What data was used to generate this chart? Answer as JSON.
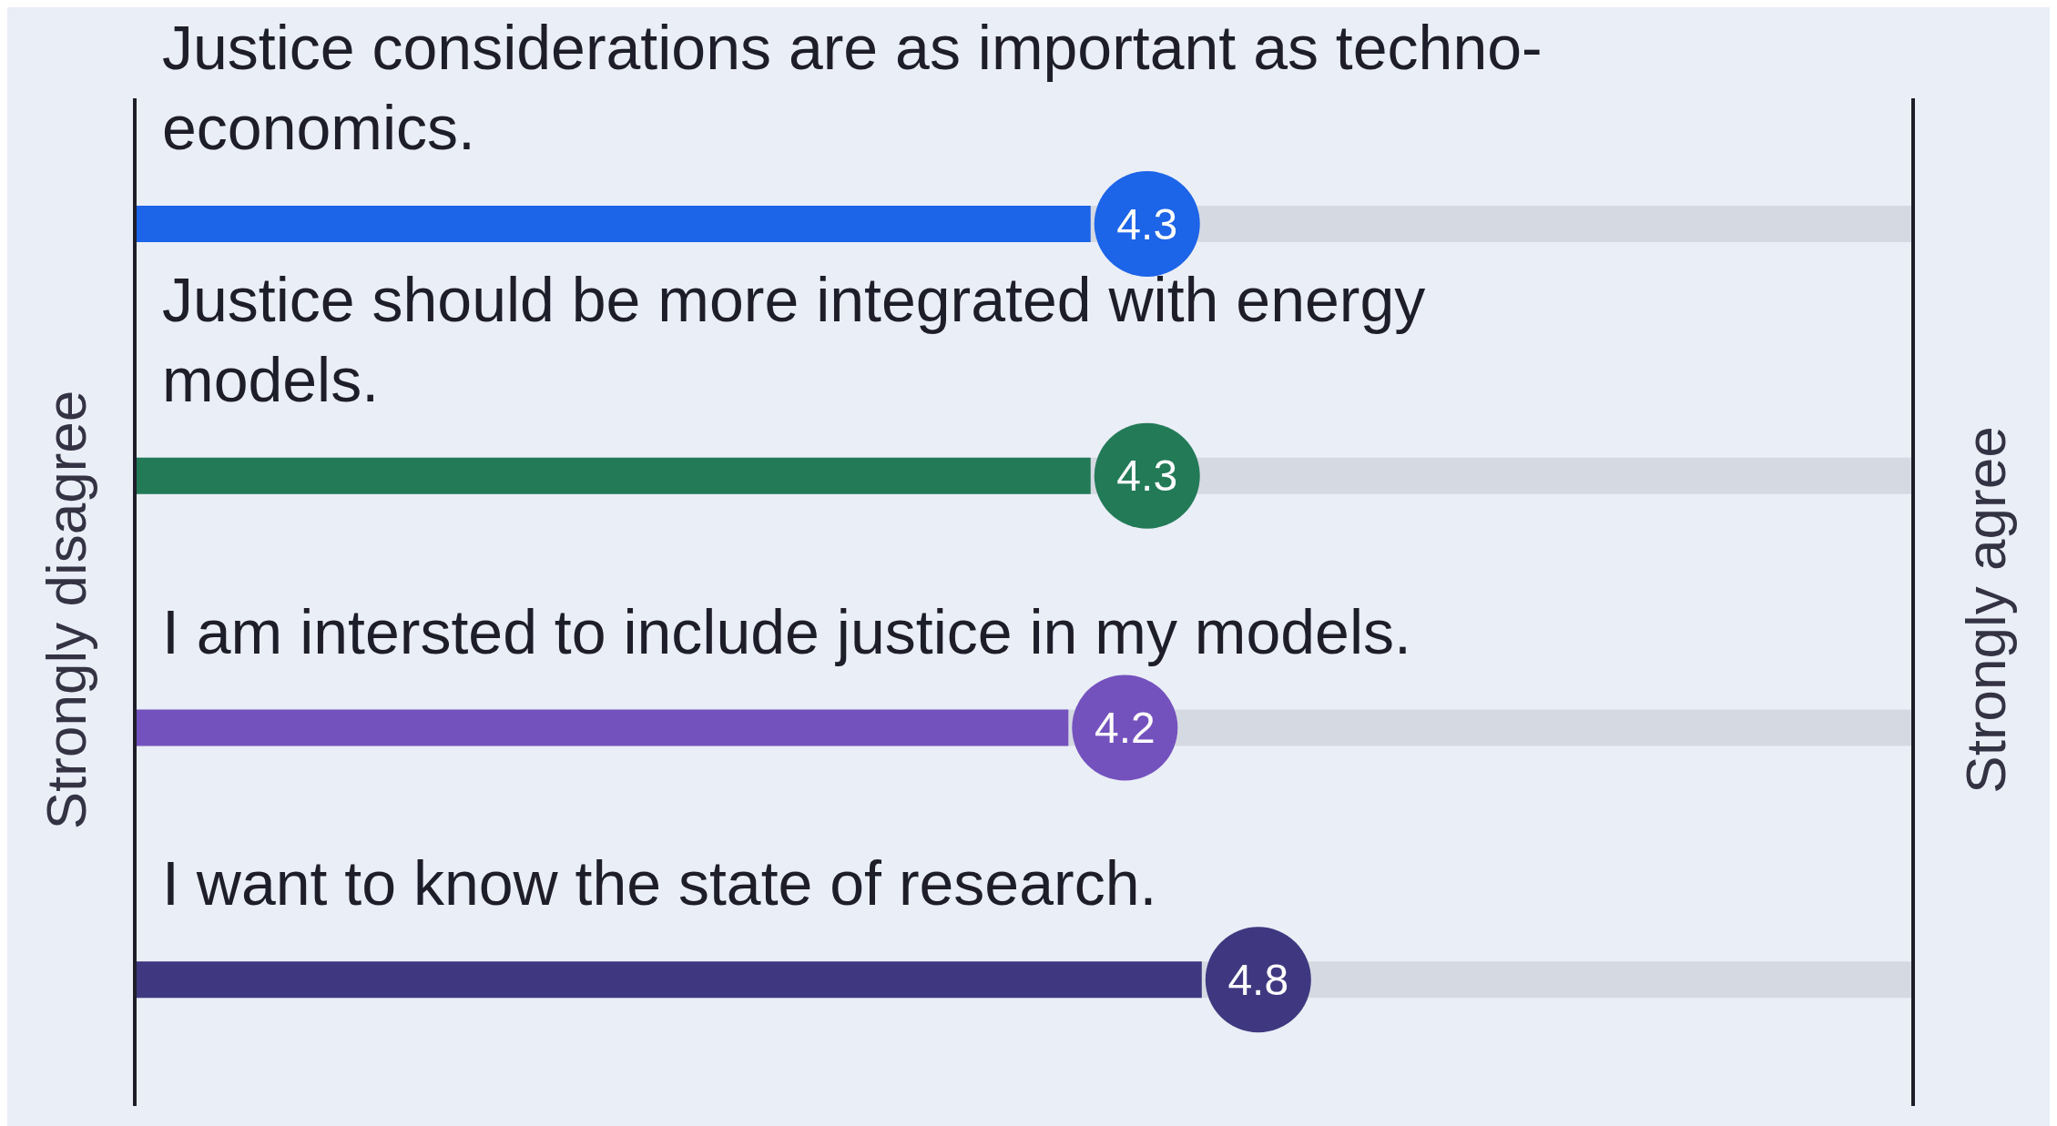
{
  "chart_data": {
    "type": "bar",
    "orientation": "horizontal",
    "categories": [
      "Justice considerations are as important as techno-economics.",
      "Justice should be more integrated with energy models.",
      "I am intersted to include justice in my models.",
      "I want to know the state of research."
    ],
    "values": [
      4.3,
      4.3,
      4.2,
      4.8
    ],
    "colors": [
      "#1c64e8",
      "#237a57",
      "#7452be",
      "#3f3880"
    ],
    "annotations": [
      "Strongly disagree",
      "Strongly agree"
    ],
    "data_labels": true,
    "grid": false,
    "legend": false
  }
}
